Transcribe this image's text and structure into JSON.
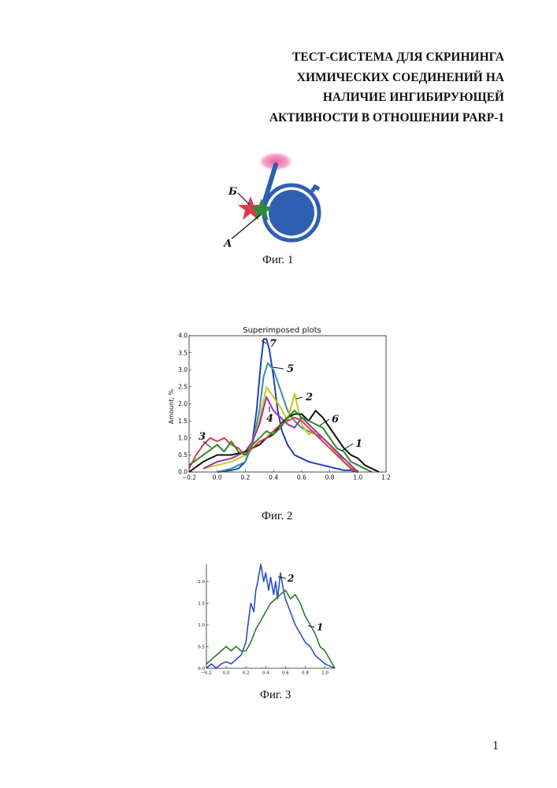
{
  "title": {
    "lines": [
      "ТЕСТ-СИСТЕМА ДЛЯ СКРИНИНГА",
      "ХИМИЧЕСКИХ СОЕДИНЕНИЙ НА",
      "НАЛИЧИЕ ИНГИБИРУЮЩЕЙ",
      "АКТИВНОСТИ В ОТНОШЕНИИ PARP-1"
    ]
  },
  "fig1": {
    "caption": "Фиг. 1",
    "label_b": "Б",
    "label_a": "А",
    "colors": {
      "circle": "#2f5fb3",
      "halo": "#e8569a",
      "star_red": "#d83a4c",
      "star_green": "#2e8a3c"
    }
  },
  "fig2": {
    "caption": "Фиг. 2",
    "handwritten_labels": [
      "7",
      "5",
      "2",
      "4",
      "6",
      "3",
      "1"
    ]
  },
  "fig3": {
    "caption": "Фиг. 3",
    "handwritten_labels": [
      "2",
      "1"
    ]
  },
  "page_number": "1",
  "chart_data": [
    {
      "type": "line",
      "title": "Superimposed plots",
      "xlabel": "",
      "ylabel": "Amount, %",
      "xlim": [
        -0.2,
        1.2
      ],
      "ylim": [
        0,
        4.0
      ],
      "xticks": [
        "−0.2",
        "0.0",
        "0.2",
        "0.4",
        "0.6",
        "0.8",
        "1.0",
        "1.2"
      ],
      "yticks": [
        "0.0",
        "0.5",
        "1.0",
        "1.5",
        "2.0",
        "2.5",
        "3.0",
        "3.5",
        "4.0"
      ],
      "grid": false,
      "series": [
        {
          "name": "7",
          "color": "#1f3fbf",
          "x": [
            0.0,
            0.1,
            0.15,
            0.2,
            0.25,
            0.28,
            0.31,
            0.33,
            0.35,
            0.37,
            0.4,
            0.43,
            0.46,
            0.5,
            0.55,
            0.6,
            0.65,
            0.7,
            0.75,
            0.8,
            0.85,
            0.9,
            0.95,
            1.0
          ],
          "values": [
            0.0,
            0.05,
            0.1,
            0.3,
            0.9,
            1.8,
            3.2,
            3.9,
            3.9,
            3.6,
            2.8,
            1.8,
            1.2,
            0.8,
            0.5,
            0.4,
            0.3,
            0.25,
            0.2,
            0.15,
            0.1,
            0.05,
            0.05,
            0.0
          ]
        },
        {
          "name": "5",
          "color": "#3a8f9a",
          "x": [
            0.0,
            0.1,
            0.2,
            0.25,
            0.3,
            0.33,
            0.36,
            0.4,
            0.45,
            0.5,
            0.55,
            0.6,
            0.65,
            0.7,
            0.75,
            0.8,
            0.85,
            0.9,
            0.95,
            1.0
          ],
          "values": [
            0.0,
            0.1,
            0.3,
            0.8,
            1.8,
            2.8,
            3.2,
            3.0,
            2.4,
            1.8,
            1.5,
            1.3,
            1.2,
            1.1,
            1.0,
            0.8,
            0.6,
            0.3,
            0.1,
            0.0
          ]
        },
        {
          "name": "2",
          "color": "#c8c820",
          "x": [
            -0.1,
            0.0,
            0.1,
            0.2,
            0.25,
            0.3,
            0.35,
            0.4,
            0.45,
            0.5,
            0.55,
            0.6,
            0.65,
            0.7,
            0.75,
            0.8,
            0.85,
            0.9,
            0.95,
            1.0
          ],
          "values": [
            0.1,
            0.2,
            0.3,
            0.5,
            0.9,
            1.5,
            2.5,
            2.2,
            1.9,
            1.5,
            2.3,
            1.4,
            1.1,
            1.2,
            1.0,
            0.8,
            0.5,
            0.3,
            0.15,
            0.0
          ]
        },
        {
          "name": "4",
          "color": "#a030a0",
          "x": [
            -0.1,
            0.0,
            0.1,
            0.2,
            0.25,
            0.3,
            0.35,
            0.4,
            0.45,
            0.5,
            0.55,
            0.6,
            0.65,
            0.7,
            0.75,
            0.8,
            0.85,
            0.9,
            0.95,
            1.0
          ],
          "values": [
            0.1,
            0.3,
            0.4,
            0.6,
            0.9,
            1.4,
            2.2,
            1.8,
            1.6,
            1.4,
            1.3,
            1.6,
            1.4,
            1.2,
            1.0,
            0.8,
            0.6,
            0.4,
            0.2,
            0.0
          ]
        },
        {
          "name": "6",
          "color": "#111111",
          "x": [
            -0.2,
            -0.1,
            0.0,
            0.1,
            0.2,
            0.3,
            0.35,
            0.4,
            0.45,
            0.5,
            0.55,
            0.6,
            0.65,
            0.7,
            0.75,
            0.8,
            0.85,
            0.9,
            0.95,
            1.0,
            1.05,
            1.1,
            1.15
          ],
          "values": [
            0.0,
            0.3,
            0.5,
            0.5,
            0.6,
            0.8,
            1.0,
            1.1,
            1.4,
            1.6,
            1.7,
            1.7,
            1.5,
            1.8,
            1.6,
            1.3,
            1.0,
            0.7,
            0.5,
            0.4,
            0.2,
            0.1,
            0.0
          ]
        },
        {
          "name": "3",
          "color": "#d84040",
          "x": [
            -0.2,
            -0.15,
            -0.1,
            -0.05,
            0.0,
            0.05,
            0.1,
            0.15,
            0.2,
            0.25,
            0.3,
            0.35,
            0.4,
            0.45,
            0.5,
            0.55,
            0.6,
            0.65,
            0.7,
            0.75,
            0.8,
            0.85,
            0.9,
            0.95,
            1.0
          ],
          "values": [
            0.1,
            0.5,
            0.8,
            1.0,
            0.9,
            1.0,
            0.8,
            0.7,
            0.5,
            0.7,
            0.9,
            1.0,
            1.2,
            1.4,
            1.5,
            1.6,
            1.5,
            1.3,
            1.1,
            0.9,
            0.7,
            0.5,
            0.3,
            0.1,
            0.0
          ]
        },
        {
          "name": "1",
          "color": "#2a8a2a",
          "x": [
            -0.2,
            -0.1,
            0.0,
            0.05,
            0.1,
            0.15,
            0.2,
            0.25,
            0.3,
            0.35,
            0.4,
            0.45,
            0.5,
            0.55,
            0.6,
            0.65,
            0.7,
            0.75,
            0.8,
            0.85,
            0.9,
            0.95,
            1.0,
            1.05,
            1.1
          ],
          "values": [
            0.2,
            0.5,
            0.8,
            0.6,
            0.9,
            0.6,
            0.5,
            0.8,
            1.0,
            1.2,
            1.1,
            1.3,
            1.6,
            1.8,
            1.6,
            1.5,
            1.4,
            1.3,
            1.0,
            0.7,
            0.6,
            0.3,
            0.2,
            0.1,
            0.0
          ]
        }
      ]
    },
    {
      "type": "line",
      "title": "",
      "xlabel": "",
      "ylabel": "",
      "xlim": [
        -0.2,
        1.1
      ],
      "ylim": [
        0,
        2.4
      ],
      "xticks": [
        "−0.2",
        "0.0",
        "0.2",
        "0.4",
        "0.6",
        "0.8",
        "1.0"
      ],
      "yticks": [
        "0.0",
        "0.5",
        "1.0",
        "1.5",
        "2.0"
      ],
      "grid": false,
      "series": [
        {
          "name": "2",
          "color": "#2a4fc8",
          "x": [
            -0.2,
            -0.15,
            -0.1,
            -0.05,
            0.0,
            0.05,
            0.1,
            0.15,
            0.2,
            0.22,
            0.25,
            0.28,
            0.3,
            0.32,
            0.35,
            0.38,
            0.4,
            0.43,
            0.45,
            0.48,
            0.5,
            0.52,
            0.55,
            0.58,
            0.6,
            0.65,
            0.7,
            0.75,
            0.8,
            0.85,
            0.9,
            0.95,
            1.0,
            1.05,
            1.1
          ],
          "values": [
            0.0,
            0.1,
            0.0,
            0.1,
            0.15,
            0.1,
            0.2,
            0.3,
            0.6,
            1.0,
            1.5,
            1.3,
            1.8,
            2.0,
            2.4,
            2.0,
            2.2,
            1.8,
            2.1,
            1.7,
            2.0,
            1.6,
            2.2,
            1.8,
            1.6,
            1.3,
            1.0,
            0.8,
            0.6,
            0.5,
            0.3,
            0.2,
            0.1,
            0.05,
            0.0
          ]
        },
        {
          "name": "1",
          "color": "#2e7a28",
          "x": [
            -0.2,
            -0.15,
            -0.1,
            -0.05,
            0.0,
            0.05,
            0.1,
            0.15,
            0.2,
            0.25,
            0.3,
            0.35,
            0.4,
            0.45,
            0.5,
            0.55,
            0.6,
            0.65,
            0.7,
            0.75,
            0.8,
            0.85,
            0.9,
            0.95,
            1.0,
            1.05,
            1.1
          ],
          "values": [
            0.1,
            0.2,
            0.3,
            0.4,
            0.5,
            0.4,
            0.5,
            0.4,
            0.4,
            0.6,
            0.9,
            1.1,
            1.3,
            1.5,
            1.6,
            1.7,
            1.8,
            1.6,
            1.7,
            1.5,
            1.2,
            1.0,
            0.8,
            0.5,
            0.4,
            0.2,
            0.0
          ]
        }
      ]
    }
  ]
}
